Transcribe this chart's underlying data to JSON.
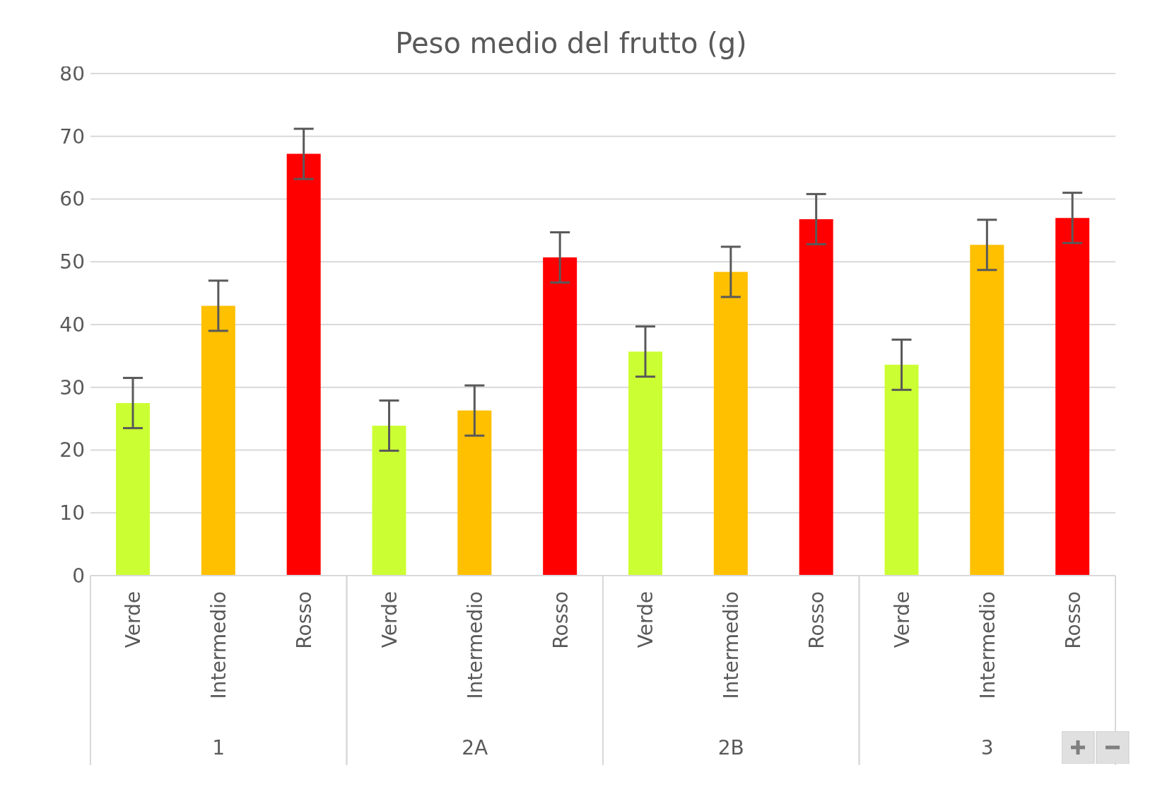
{
  "chart_data": {
    "type": "bar",
    "title": "Peso medio del frutto (g)",
    "categories": [
      "Verde",
      "Intermedio",
      "Rosso",
      "Verde",
      "Intermedio",
      "Rosso",
      "Verde",
      "Intermedio",
      "Rosso",
      "Verde",
      "Intermedio",
      "Rosso"
    ],
    "values": [
      27.5,
      43.0,
      67.2,
      23.9,
      26.3,
      50.7,
      35.7,
      48.4,
      56.8,
      33.6,
      52.7,
      57.0
    ],
    "errors": [
      4,
      4,
      4,
      4,
      4,
      4,
      4,
      4,
      4,
      4,
      4,
      4
    ],
    "colors": [
      "#ccff33",
      "#ffc000",
      "#ff0000",
      "#ccff33",
      "#ffc000",
      "#ff0000",
      "#ccff33",
      "#ffc000",
      "#ff0000",
      "#ccff33",
      "#ffc000",
      "#ff0000"
    ],
    "annotations": [
      "1",
      "2A",
      "2B",
      "3"
    ],
    "ylim": [
      0,
      80
    ],
    "yticks": [
      0,
      10,
      20,
      30,
      40,
      50,
      60,
      70,
      80
    ],
    "grid": "y"
  }
}
